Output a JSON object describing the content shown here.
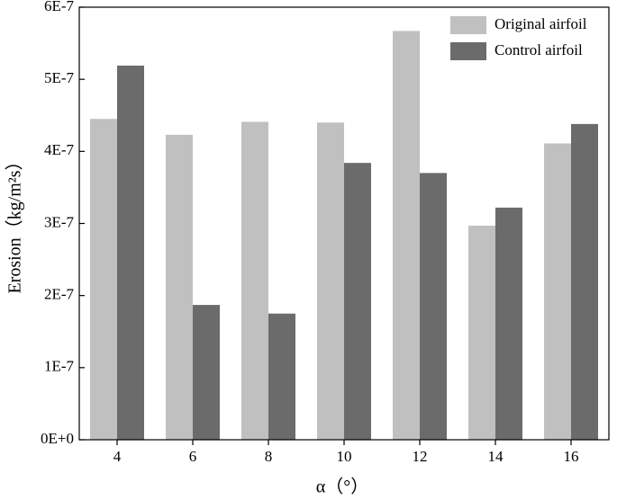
{
  "chart_data": {
    "type": "bar",
    "x_label": "α（°）",
    "y_label": "Erosion（kg/m²s）",
    "categories": [
      "4",
      "6",
      "8",
      "10",
      "12",
      "14",
      "16"
    ],
    "series": [
      {
        "name": "Original airfoil",
        "color": "#c0c0c0",
        "values": [
          4.45e-07,
          4.23e-07,
          4.41e-07,
          4.4e-07,
          5.67e-07,
          2.97e-07,
          4.11e-07
        ]
      },
      {
        "name": "Control airfoil",
        "color": "#6b6b6b",
        "values": [
          5.19e-07,
          1.87e-07,
          1.75e-07,
          3.84e-07,
          3.7e-07,
          3.22e-07,
          4.38e-07
        ]
      }
    ],
    "ylim": [
      0,
      6e-07
    ],
    "yticks": [
      {
        "value": 0,
        "label": "0E+0"
      },
      {
        "value": 1e-07,
        "label": "1E-7"
      },
      {
        "value": 2e-07,
        "label": "2E-7"
      },
      {
        "value": 3e-07,
        "label": "3E-7"
      },
      {
        "value": 4e-07,
        "label": "4E-7"
      },
      {
        "value": 5e-07,
        "label": "5E-7"
      },
      {
        "value": 6e-07,
        "label": "6E-7"
      }
    ],
    "legend": "upper right"
  }
}
